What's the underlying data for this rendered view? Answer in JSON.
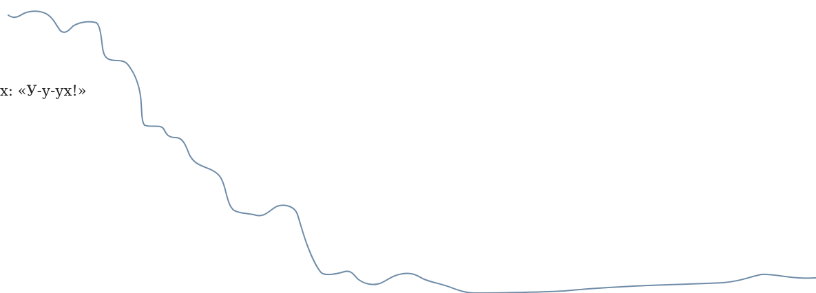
{
  "text_fragment": "х: «У-у-ух!»",
  "line": {
    "color": "#6f8ca8",
    "icon": "wavy-line"
  }
}
